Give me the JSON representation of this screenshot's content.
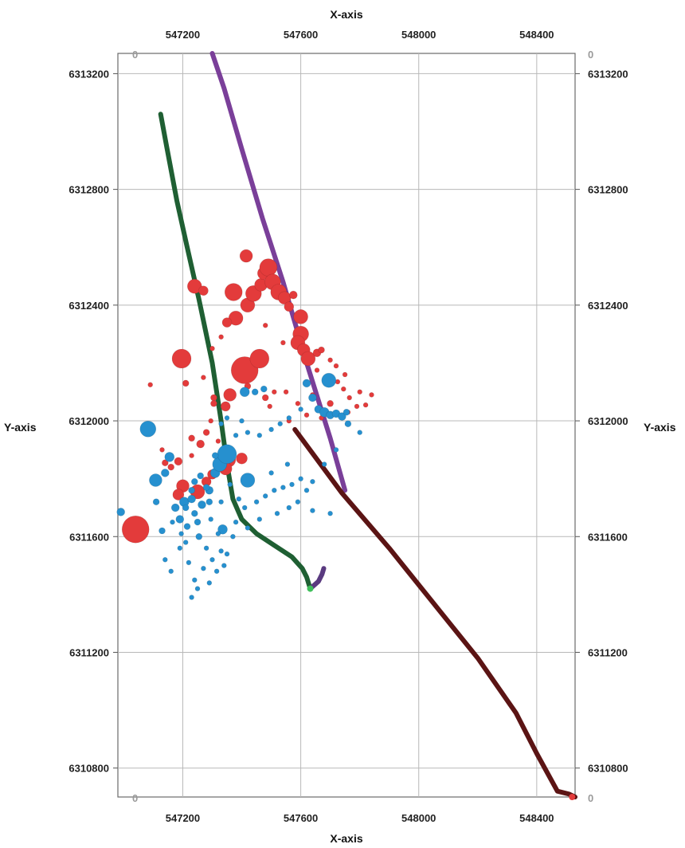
{
  "chart_data": {
    "type": "scatter",
    "title": "",
    "xlabel_top": "X-axis",
    "xlabel_bottom": "X-axis",
    "ylabel_left": "Y-axis",
    "ylabel_right": "Y-axis",
    "xlim": [
      546980,
      548530
    ],
    "ylim": [
      6310700,
      6313270
    ],
    "x_ticks": [
      547200,
      547600,
      548000,
      548400
    ],
    "y_ticks": [
      6310800,
      6311200,
      6311600,
      6312000,
      6312400,
      6312800,
      6313200
    ],
    "corner_label": "0",
    "grid": true,
    "colors": {
      "red_events": "#e33b3b",
      "blue_events": "#2690cf",
      "green_well": "#1f5f33",
      "purple_well": "#7a3f99",
      "maroon_well": "#5b1414",
      "grid": "#b8b8b8"
    },
    "wells": [
      {
        "color": "#1f5f33",
        "x": [
          547125,
          547145,
          547180,
          547215,
          547255,
          547300,
          547330,
          547350,
          547370,
          547400,
          547450,
          547510,
          547570,
          547605,
          547620,
          547632
        ],
        "y": [
          6313060,
          6312950,
          6312760,
          6312600,
          6312420,
          6312200,
          6312000,
          6311850,
          6311730,
          6311660,
          6311610,
          6311570,
          6311530,
          6311490,
          6311460,
          6311420
        ]
      },
      {
        "color": "#7a3f99",
        "x": [
          547300,
          547340,
          547400,
          547470,
          547540,
          547620,
          547700,
          547750
        ],
        "y": [
          6313270,
          6313150,
          6312940,
          6312700,
          6312480,
          6312200,
          6311940,
          6311760
        ]
      },
      {
        "color": "#5b1414",
        "x": [
          547580,
          547740,
          547900,
          548050,
          548200,
          548330,
          548400,
          548470,
          548510,
          548530
        ],
        "y": [
          6311970,
          6311750,
          6311560,
          6311370,
          6311180,
          6310990,
          6310850,
          6310720,
          6310710,
          6310700
        ]
      },
      {
        "color": "#5a3a80",
        "x": [
          547632,
          547660,
          547672,
          547678
        ],
        "y": [
          6311420,
          6311445,
          6311470,
          6311490
        ]
      }
    ],
    "series": [
      {
        "color": "#e33b3b",
        "points": [
          [
            547040,
            6311625,
            17
          ],
          [
            547196,
            6312215,
            12
          ],
          [
            547240,
            6312465,
            9
          ],
          [
            547270,
            6312450,
            6
          ],
          [
            547372,
            6312445,
            11
          ],
          [
            547420,
            6312400,
            9
          ],
          [
            547440,
            6312440,
            10
          ],
          [
            547465,
            6312470,
            8
          ],
          [
            547475,
            6312510,
            8
          ],
          [
            547490,
            6312530,
            11
          ],
          [
            547505,
            6312480,
            10
          ],
          [
            547525,
            6312445,
            10
          ],
          [
            547545,
            6312425,
            8
          ],
          [
            547560,
            6312395,
            6
          ],
          [
            547575,
            6312435,
            5
          ],
          [
            547415,
            6312570,
            8
          ],
          [
            547410,
            6312175,
            17
          ],
          [
            547460,
            6312215,
            12
          ],
          [
            547380,
            6312355,
            9
          ],
          [
            547350,
            6312340,
            6
          ],
          [
            547600,
            6312360,
            9
          ],
          [
            547600,
            6312300,
            10
          ],
          [
            547590,
            6312270,
            9
          ],
          [
            547610,
            6312245,
            8
          ],
          [
            547625,
            6312215,
            9
          ],
          [
            547655,
            6312235,
            5
          ],
          [
            547670,
            6312245,
            4
          ],
          [
            547360,
            6312090,
            8
          ],
          [
            547345,
            6312050,
            6
          ],
          [
            547305,
            6312080,
            4
          ],
          [
            547305,
            6312060,
            4
          ],
          [
            547400,
            6311870,
            7
          ],
          [
            547355,
            6311865,
            9
          ],
          [
            547345,
            6311835,
            8
          ],
          [
            547300,
            6311815,
            6
          ],
          [
            547280,
            6311790,
            6
          ],
          [
            547250,
            6311755,
            9
          ],
          [
            547200,
            6311775,
            8
          ],
          [
            547185,
            6311745,
            7
          ],
          [
            547160,
            6311840,
            4
          ],
          [
            547185,
            6311860,
            5
          ],
          [
            547140,
            6311855,
            4
          ],
          [
            547260,
            6311920,
            5
          ],
          [
            547230,
            6311940,
            4
          ],
          [
            547280,
            6311960,
            4
          ],
          [
            547420,
            6312120,
            4
          ],
          [
            547480,
            6312080,
            4
          ],
          [
            547560,
            6312000,
            3
          ],
          [
            547210,
            6312130,
            4
          ],
          [
            547090,
            6312125,
            3
          ],
          [
            547270,
            6312150,
            3
          ],
          [
            547295,
            6312000,
            3
          ],
          [
            547495,
            6312050,
            3
          ],
          [
            547510,
            6312100,
            3
          ],
          [
            547700,
            6312060,
            4
          ],
          [
            547725,
            6312135,
            3
          ],
          [
            547745,
            6312110,
            3
          ],
          [
            547765,
            6312080,
            3
          ],
          [
            547790,
            6312050,
            3
          ],
          [
            547820,
            6312055,
            3
          ],
          [
            547840,
            6312090,
            3
          ],
          [
            547720,
            6312190,
            3
          ],
          [
            547700,
            6312210,
            3
          ],
          [
            547750,
            6312160,
            3
          ],
          [
            547655,
            6312175,
            3
          ],
          [
            547640,
            6312090,
            3
          ],
          [
            547540,
            6312270,
            3
          ],
          [
            547480,
            6312330,
            3
          ],
          [
            547330,
            6312290,
            3
          ],
          [
            547300,
            6312250,
            3
          ],
          [
            547620,
            6312020,
            3
          ],
          [
            547670,
            6312010,
            3
          ],
          [
            547590,
            6312060,
            3
          ],
          [
            547550,
            6312100,
            3
          ],
          [
            547760,
            6312030,
            3
          ],
          [
            547800,
            6312100,
            3
          ],
          [
            547110,
            6311800,
            3
          ],
          [
            547130,
            6311900,
            3
          ],
          [
            547230,
            6311880,
            3
          ],
          [
            547320,
            6311930,
            3
          ]
        ]
      },
      {
        "color": "#2690cf",
        "points": [
          [
            547082,
            6311972,
            10
          ],
          [
            547108,
            6311795,
            8
          ],
          [
            547155,
            6311875,
            6
          ],
          [
            547140,
            6311820,
            5
          ],
          [
            547110,
            6311720,
            4
          ],
          [
            546990,
            6311685,
            5
          ],
          [
            547130,
            6311620,
            4
          ],
          [
            547175,
            6311700,
            5
          ],
          [
            547190,
            6311660,
            5
          ],
          [
            547205,
            6311720,
            6
          ],
          [
            547230,
            6311730,
            5
          ],
          [
            547240,
            6311680,
            4
          ],
          [
            547265,
            6311710,
            5
          ],
          [
            547290,
            6311760,
            5
          ],
          [
            547310,
            6311820,
            6
          ],
          [
            547325,
            6311850,
            9
          ],
          [
            547350,
            6311885,
            12
          ],
          [
            547420,
            6311795,
            9
          ],
          [
            547310,
            6311880,
            4
          ],
          [
            547335,
            6311625,
            6
          ],
          [
            547255,
            6311600,
            4
          ],
          [
            547280,
            6311560,
            3
          ],
          [
            547300,
            6311520,
            3
          ],
          [
            547240,
            6311450,
            3
          ],
          [
            547270,
            6311490,
            3
          ],
          [
            547350,
            6311540,
            3
          ],
          [
            547370,
            6311600,
            3
          ],
          [
            547380,
            6311650,
            3
          ],
          [
            547410,
            6311700,
            3
          ],
          [
            547450,
            6311720,
            3
          ],
          [
            547480,
            6311740,
            3
          ],
          [
            547510,
            6311760,
            3
          ],
          [
            547540,
            6311770,
            3
          ],
          [
            547570,
            6311780,
            3
          ],
          [
            547600,
            6311800,
            3
          ],
          [
            547620,
            6311760,
            3
          ],
          [
            547590,
            6311720,
            3
          ],
          [
            547560,
            6311700,
            3
          ],
          [
            547640,
            6311690,
            3
          ],
          [
            547700,
            6311680,
            3
          ],
          [
            547520,
            6311680,
            3
          ],
          [
            547460,
            6311660,
            3
          ],
          [
            547420,
            6311630,
            3
          ],
          [
            547140,
            6311520,
            3
          ],
          [
            547160,
            6311480,
            3
          ],
          [
            547190,
            6311560,
            3
          ],
          [
            547220,
            6311510,
            3
          ],
          [
            547250,
            6311420,
            3
          ],
          [
            547230,
            6311390,
            3
          ],
          [
            547290,
            6311440,
            3
          ],
          [
            547315,
            6311480,
            3
          ],
          [
            547340,
            6311500,
            3
          ],
          [
            547380,
            6311950,
            3
          ],
          [
            547420,
            6311960,
            3
          ],
          [
            547460,
            6311950,
            3
          ],
          [
            547500,
            6311970,
            3
          ],
          [
            547530,
            6311990,
            3
          ],
          [
            547560,
            6312010,
            3
          ],
          [
            547600,
            6312040,
            3
          ],
          [
            547620,
            6312130,
            5
          ],
          [
            547640,
            6312080,
            5
          ],
          [
            547660,
            6312040,
            5
          ],
          [
            547680,
            6312030,
            6
          ],
          [
            547695,
            6312140,
            9
          ],
          [
            547700,
            6312020,
            5
          ],
          [
            547720,
            6312025,
            5
          ],
          [
            547740,
            6312015,
            5
          ],
          [
            547755,
            6312030,
            4
          ],
          [
            547760,
            6311990,
            4
          ],
          [
            547410,
            6312100,
            6
          ],
          [
            547445,
            6312100,
            4
          ],
          [
            547475,
            6312110,
            4
          ],
          [
            547350,
            6312010,
            3
          ],
          [
            547330,
            6311990,
            3
          ],
          [
            547400,
            6312000,
            3
          ],
          [
            547260,
            6311810,
            4
          ],
          [
            547280,
            6311770,
            4
          ],
          [
            547240,
            6311790,
            4
          ],
          [
            547210,
            6311700,
            4
          ],
          [
            547195,
            6311610,
            3
          ],
          [
            547215,
            6311635,
            4
          ],
          [
            547295,
            6311660,
            3
          ],
          [
            547320,
            6311610,
            3
          ],
          [
            547330,
            6311550,
            3
          ],
          [
            547210,
            6311580,
            3
          ],
          [
            547165,
            6311650,
            3
          ],
          [
            547290,
            6311720,
            4
          ],
          [
            547250,
            6311650,
            4
          ],
          [
            547230,
            6311760,
            4
          ],
          [
            547330,
            6311720,
            3
          ],
          [
            547360,
            6311780,
            3
          ],
          [
            547390,
            6311730,
            3
          ],
          [
            547500,
            6311820,
            3
          ],
          [
            547555,
            6311850,
            3
          ],
          [
            547800,
            6311960,
            3
          ],
          [
            547720,
            6311900,
            3
          ],
          [
            547680,
            6311850,
            3
          ],
          [
            547640,
            6311790,
            3
          ]
        ]
      }
    ]
  }
}
